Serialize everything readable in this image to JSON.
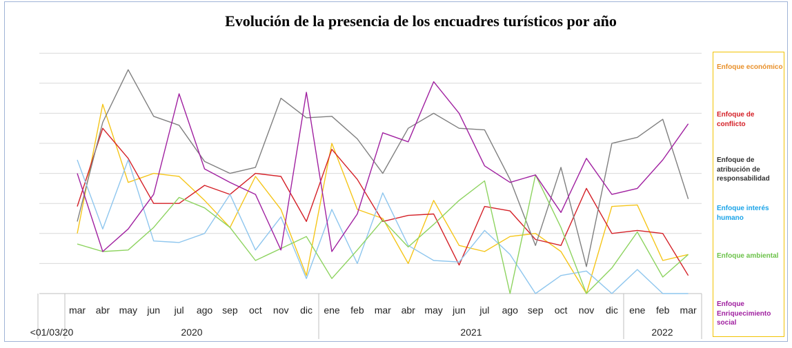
{
  "chart_data": {
    "type": "line",
    "title": "Evolución de la presencia de los encuadres turísticos por año",
    "first_category": "<01/03/20",
    "categories": [
      "mar",
      "abr",
      "may",
      "jun",
      "jul",
      "ago",
      "sep",
      "oct",
      "nov",
      "dic",
      "ene",
      "feb",
      "mar",
      "abr",
      "may",
      "jun",
      "jul",
      "ago",
      "sep",
      "oct",
      "nov",
      "dic",
      "ene",
      "feb",
      "mar"
    ],
    "years": [
      {
        "label": "2020"
      },
      {
        "label": "2021"
      },
      {
        "label": "2022"
      }
    ],
    "ylim": [
      0,
      8
    ],
    "grid": true,
    "legend_position": "right",
    "series": [
      {
        "name": "Enfoque económico",
        "color": "#f5c518",
        "values": [
          2.0,
          6.3,
          3.7,
          4.0,
          3.9,
          3.1,
          2.2,
          3.9,
          2.8,
          0.6,
          5.0,
          2.8,
          2.5,
          1.0,
          3.1,
          1.6,
          1.4,
          1.9,
          2.0,
          1.4,
          0.0,
          2.9,
          2.95,
          1.1,
          1.3
        ]
      },
      {
        "name": "Enfoque de conflicto",
        "color": "#d41f26",
        "values": [
          2.9,
          5.5,
          4.5,
          3.0,
          3.0,
          3.6,
          3.3,
          4.0,
          3.9,
          2.4,
          4.8,
          3.8,
          2.4,
          2.6,
          2.65,
          0.95,
          2.9,
          2.75,
          1.8,
          1.6,
          3.5,
          2.0,
          2.1,
          2.0,
          0.6
        ]
      },
      {
        "name": "Enfoque de atribución de responsabilidad",
        "color": "#7f7f7f",
        "values": [
          2.4,
          5.7,
          7.45,
          5.9,
          5.6,
          4.4,
          4.0,
          4.2,
          6.5,
          5.85,
          5.9,
          5.15,
          4.0,
          5.5,
          6.0,
          5.5,
          5.45,
          3.8,
          1.6,
          4.2,
          0.9,
          5.0,
          5.2,
          5.8,
          3.15
        ]
      },
      {
        "name": "Enfoque interés humano",
        "color": "#8ec6ee",
        "values": [
          4.45,
          2.15,
          4.45,
          1.75,
          1.7,
          2.0,
          3.3,
          1.45,
          2.55,
          0.5,
          2.8,
          1.0,
          3.35,
          1.6,
          1.1,
          1.05,
          2.1,
          1.3,
          0.0,
          0.6,
          0.75,
          0.0,
          0.8,
          0.0,
          0.0
        ]
      },
      {
        "name": "Enfoque ambiental",
        "color": "#8dd35f",
        "values": [
          1.65,
          1.4,
          1.45,
          2.2,
          3.2,
          2.85,
          2.2,
          1.1,
          1.5,
          1.9,
          0.5,
          1.45,
          2.45,
          1.55,
          2.3,
          3.1,
          3.75,
          0.0,
          3.95,
          2.2,
          0.0,
          0.85,
          2.05,
          0.55,
          1.3
        ]
      },
      {
        "name": "Enfoque Enriquecimiento social",
        "color": "#a020a0",
        "values": [
          4.0,
          1.4,
          2.15,
          3.3,
          6.65,
          4.15,
          3.7,
          3.3,
          1.45,
          6.7,
          1.4,
          2.65,
          5.35,
          5.05,
          7.05,
          6.0,
          4.25,
          3.7,
          3.95,
          2.7,
          4.5,
          3.3,
          3.5,
          4.45,
          5.65
        ]
      }
    ]
  }
}
